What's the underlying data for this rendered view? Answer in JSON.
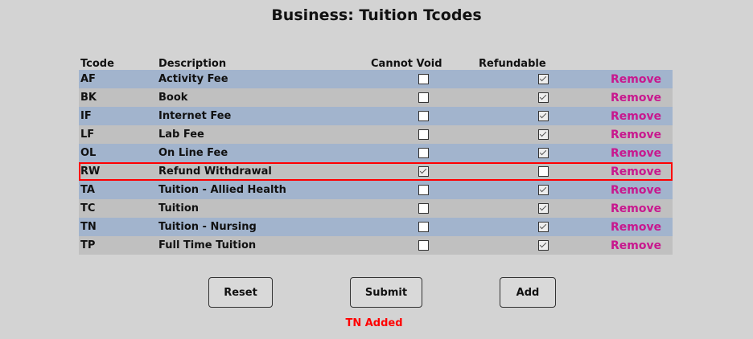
{
  "title": "Business: Tuition Tcodes",
  "headers": {
    "tcode": "Tcode",
    "description": "Description",
    "cannot_void": "Cannot Void",
    "refundable": "Refundable"
  },
  "rows": [
    {
      "tcode": "AF",
      "description": "Activity Fee",
      "cannot_void": false,
      "refundable": true,
      "action": "Remove"
    },
    {
      "tcode": "BK",
      "description": "Book",
      "cannot_void": false,
      "refundable": true,
      "action": "Remove"
    },
    {
      "tcode": "IF",
      "description": "Internet Fee",
      "cannot_void": false,
      "refundable": true,
      "action": "Remove"
    },
    {
      "tcode": "LF",
      "description": "Lab Fee",
      "cannot_void": false,
      "refundable": true,
      "action": "Remove"
    },
    {
      "tcode": "OL",
      "description": "On Line Fee",
      "cannot_void": false,
      "refundable": true,
      "action": "Remove"
    },
    {
      "tcode": "RW",
      "description": "Refund Withdrawal",
      "cannot_void": true,
      "refundable": false,
      "action": "Remove",
      "highlighted": true
    },
    {
      "tcode": "TA",
      "description": "Tuition - Allied Health",
      "cannot_void": false,
      "refundable": true,
      "action": "Remove"
    },
    {
      "tcode": "TC",
      "description": "Tuition",
      "cannot_void": false,
      "refundable": true,
      "action": "Remove"
    },
    {
      "tcode": "TN",
      "description": "Tuition - Nursing",
      "cannot_void": false,
      "refundable": true,
      "action": "Remove"
    },
    {
      "tcode": "TP",
      "description": "Full Time Tuition",
      "cannot_void": false,
      "refundable": true,
      "action": "Remove"
    }
  ],
  "buttons": {
    "reset": "Reset",
    "submit": "Submit",
    "add": "Add"
  },
  "message": "TN Added",
  "colors": {
    "row_blue": "#a2b4cd",
    "row_gray": "#c0c0c0",
    "remove": "#c8188e",
    "highlight": "#ff0000",
    "message": "#ff0000"
  }
}
